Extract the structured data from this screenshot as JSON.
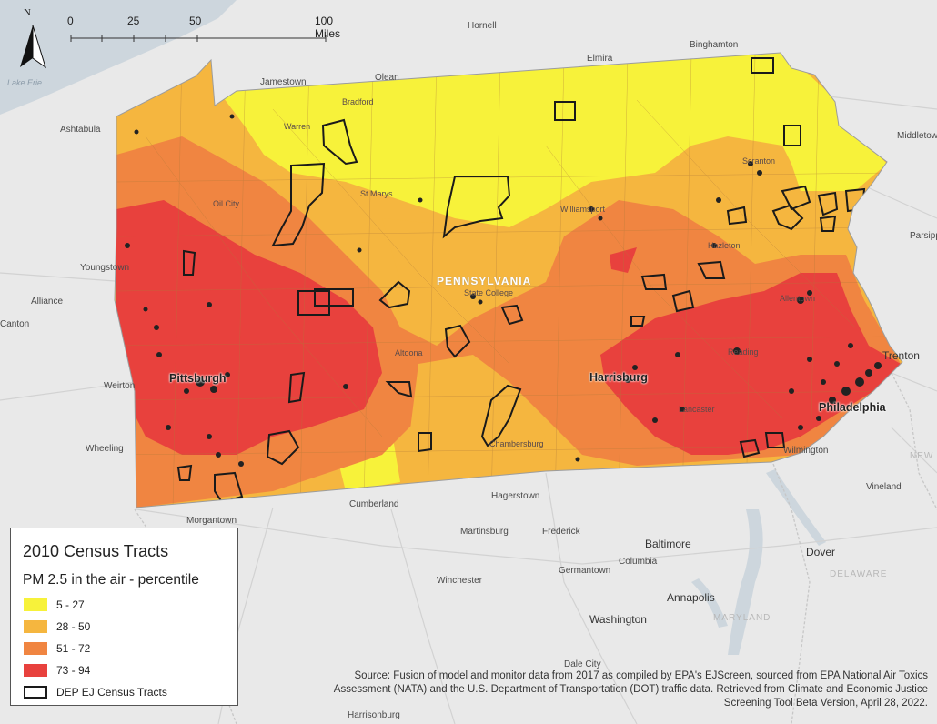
{
  "map": {
    "scale": {
      "ticks": [
        "0",
        "25",
        "50"
      ],
      "end_label": "100 Miles"
    },
    "north_label": "N",
    "state_label": "PENNSYLVANIA",
    "places_pa": [
      "Bradford",
      "Warren",
      "St Marys",
      "Oil City",
      "Williamsport",
      "Scranton",
      "Hazleton",
      "State College",
      "Allentown",
      "Altoona",
      "Reading",
      "Lancaster",
      "Chambersburg"
    ],
    "places_big": [
      "Pittsburgh",
      "Harrisburg",
      "Philadelphia"
    ],
    "places_outside": [
      "Hornell",
      "Binghamton",
      "Elmira",
      "Olean",
      "Jamestown",
      "Ashtabula",
      "Middletown",
      "Parsippany",
      "Youngstown",
      "Alliance",
      "Canton",
      "Weirton",
      "Wheeling",
      "Morgantown",
      "Cumberland",
      "Hagerstown",
      "Martinsburg",
      "Frederick",
      "Winchester",
      "Germantown",
      "Columbia",
      "Annapolis",
      "Wilmington",
      "Vineland",
      "Dover",
      "Dale City",
      "Harrisonburg"
    ],
    "places_bold": [
      "Trenton",
      "Baltimore",
      "Washington"
    ],
    "water_label": "Lake Erie",
    "regions": [
      "NEW JERSEY",
      "DELAWARE",
      "MARYLAND"
    ]
  },
  "legend": {
    "title": "2010 Census Tracts",
    "subtitle": "PM 2.5 in the air - percentile",
    "classes": [
      {
        "label": "5 - 27",
        "color": "#f7f23a"
      },
      {
        "label": "28 - 50",
        "color": "#f5b63f"
      },
      {
        "label": "51 - 72",
        "color": "#f08541"
      },
      {
        "label": "73 - 94",
        "color": "#e8413d"
      }
    ],
    "ej_label": "DEP EJ Census Tracts",
    "ej_color": "#1a1a1a"
  },
  "source": {
    "line1": "Source: Fusion of model and monitor data from 2017 as compiled by EPA's EJScreen, sourced from EPA National Air Toxics",
    "line2": "Assessment (NATA) and the U.S. Department of Transportation (DOT) traffic data. Retrieved from Climate and Economic Justice",
    "line3": "Screening Tool Beta Version, April 28, 2022."
  }
}
